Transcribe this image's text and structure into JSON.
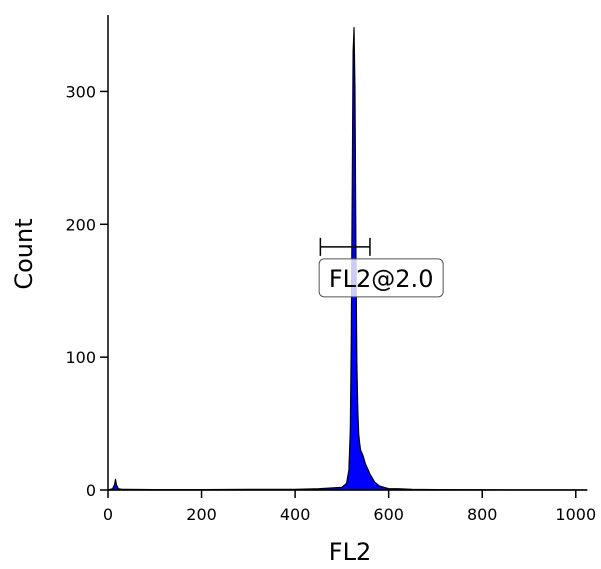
{
  "chart_data": {
    "type": "area",
    "title": "",
    "xlabel": "FL2",
    "ylabel": "Count",
    "xlim": [
      0,
      1024
    ],
    "ylim": [
      0,
      350
    ],
    "xticks": [
      0,
      200,
      400,
      600,
      800,
      1000
    ],
    "xtick_labels": [
      "0",
      "200",
      "400",
      "600",
      "800",
      "1000"
    ],
    "yticks": [
      0,
      100,
      200,
      300
    ],
    "ytick_labels": [
      "0",
      "100",
      "200",
      "300"
    ],
    "grid": false,
    "series": [
      {
        "fill_color": "#0000ff",
        "outline_color": "#000000",
        "x": [
          0,
          10,
          14,
          16,
          18,
          22,
          30,
          100,
          200,
          300,
          400,
          450,
          500,
          510,
          515,
          518,
          520,
          522,
          524,
          526,
          528,
          530,
          532,
          534,
          536,
          538,
          540,
          545,
          550,
          555,
          560,
          565,
          570,
          580,
          590,
          600,
          620,
          650,
          700,
          800,
          900,
          1000,
          1024
        ],
        "y": [
          0,
          1,
          4,
          8,
          4,
          1,
          0.5,
          0.3,
          0.3,
          0.5,
          0.5,
          1,
          2,
          5,
          15,
          45,
          110,
          220,
          330,
          348,
          300,
          180,
          95,
          60,
          42,
          35,
          30,
          26,
          20,
          16,
          12,
          9,
          6,
          3,
          2,
          1,
          1,
          0.5,
          0.3,
          0.2,
          0.1,
          0.1,
          0
        ]
      }
    ],
    "gates": [
      {
        "label": "FL2@2.0",
        "x_range": [
          454,
          560
        ],
        "y": 183
      }
    ]
  }
}
